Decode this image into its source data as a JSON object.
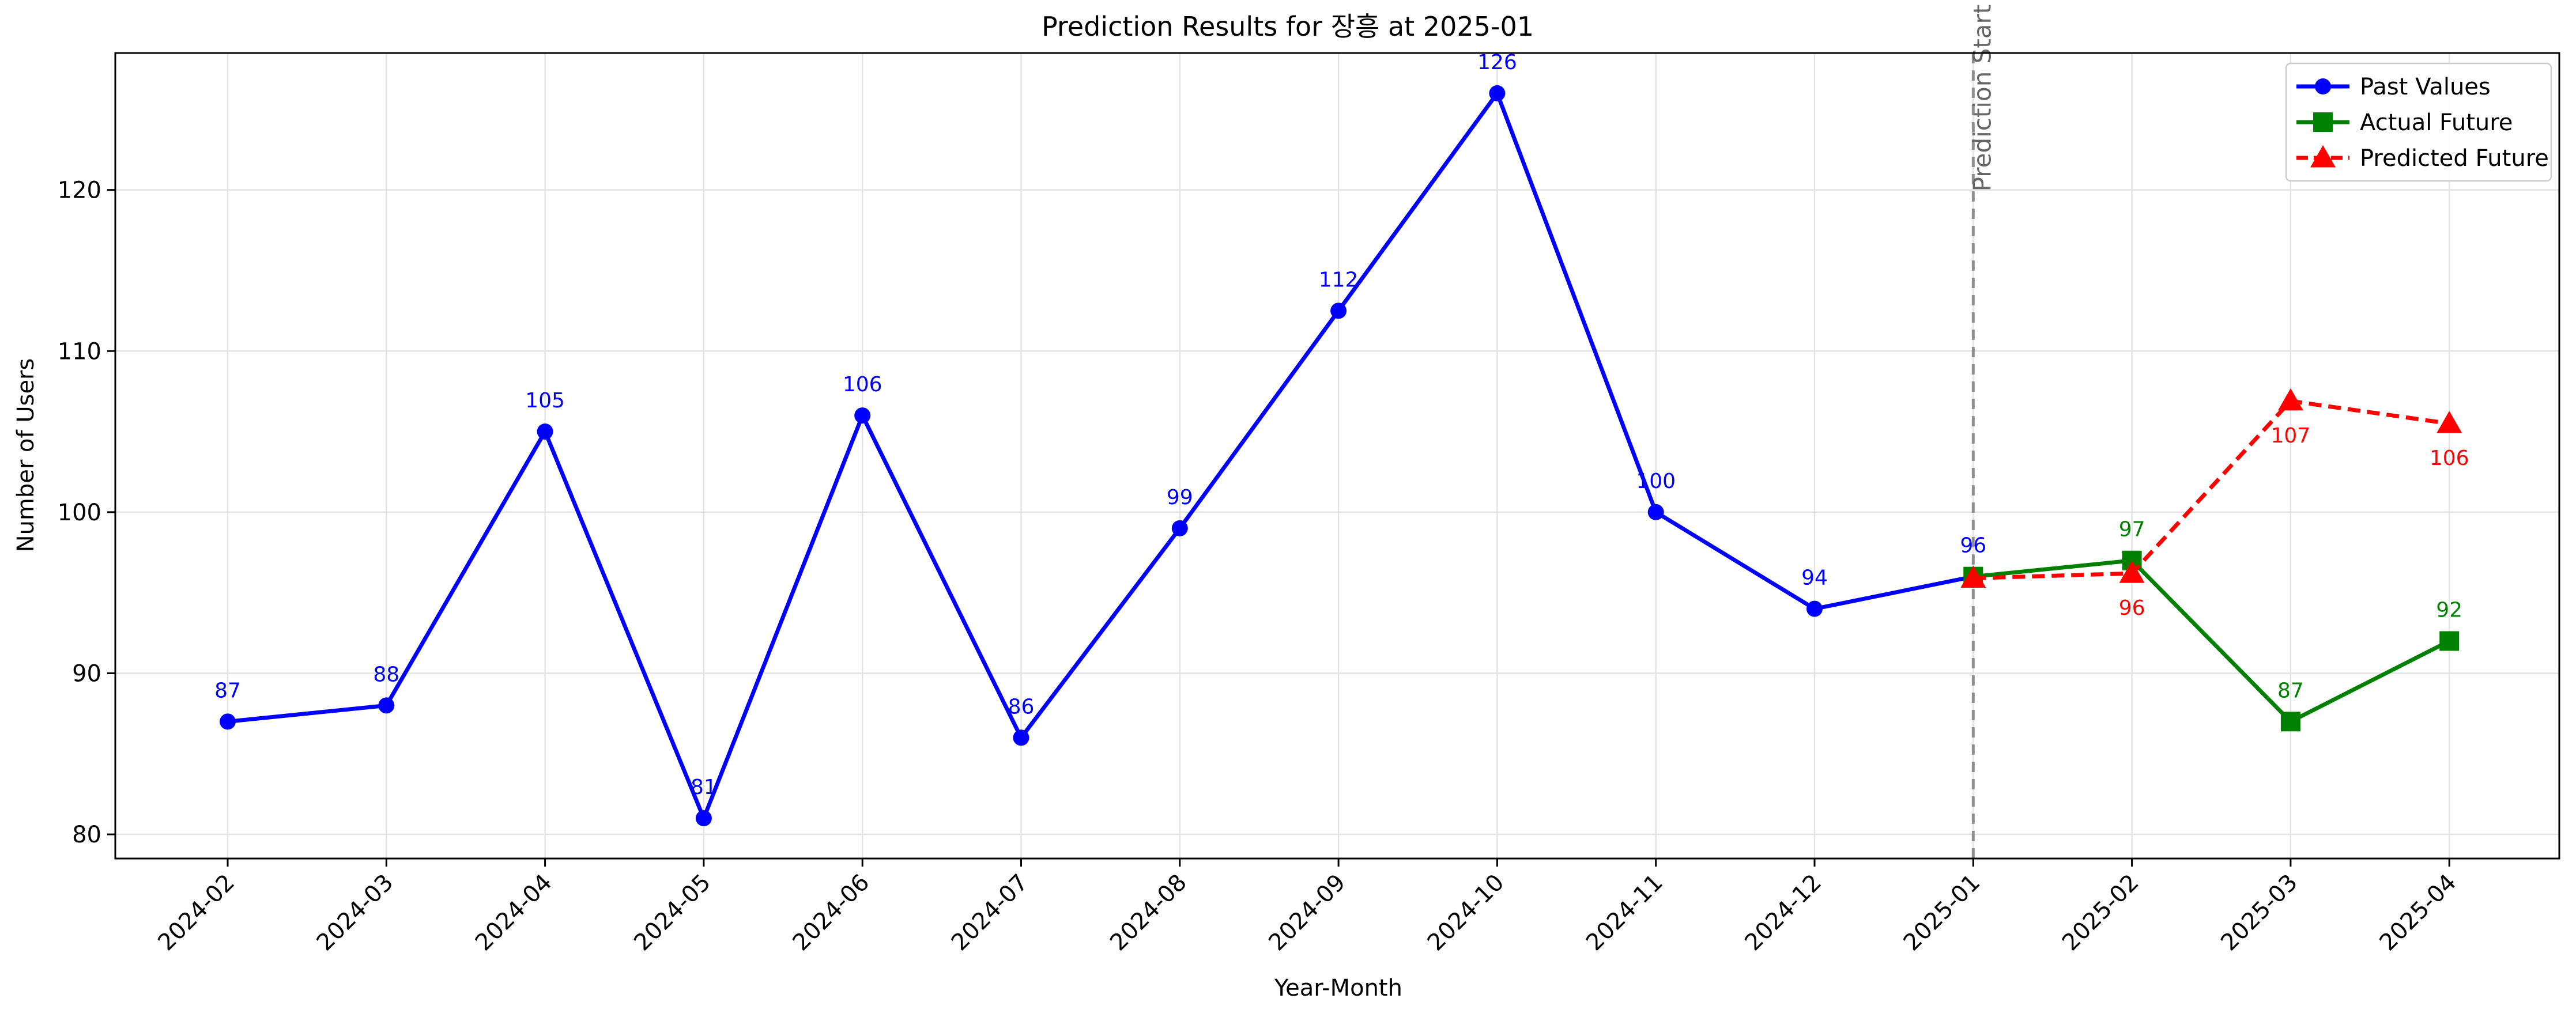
{
  "chart_data": {
    "type": "line",
    "title": "Prediction Results for 장흥 at 2025-01",
    "xlabel": "Year-Month",
    "ylabel": "Number of Users",
    "categories": [
      "2024-02",
      "2024-03",
      "2024-04",
      "2024-05",
      "2024-06",
      "2024-07",
      "2024-08",
      "2024-09",
      "2024-10",
      "2024-11",
      "2024-12",
      "2025-01",
      "2025-02",
      "2025-03",
      "2025-04"
    ],
    "ylim": [
      78.5,
      128.5
    ],
    "yticks": [
      80,
      90,
      100,
      110,
      120
    ],
    "grid": true,
    "legend_position": "top-right",
    "series": [
      {
        "name": "Past Values",
        "color": "#0000ff",
        "marker": "circle",
        "line_style": "solid",
        "x": [
          "2024-02",
          "2024-03",
          "2024-04",
          "2024-05",
          "2024-06",
          "2024-07",
          "2024-08",
          "2024-09",
          "2024-10",
          "2024-11",
          "2024-12",
          "2025-01"
        ],
        "values": [
          87,
          88,
          105,
          81,
          106,
          86,
          99,
          112.5,
          126,
          100,
          94,
          96
        ],
        "labels": [
          "87",
          "88",
          "105",
          "81",
          "106",
          "86",
          "99",
          "112",
          "126",
          "100",
          "94",
          "96"
        ],
        "label_position": "above"
      },
      {
        "name": "Actual Future",
        "color": "#008000",
        "marker": "square",
        "line_style": "solid",
        "x": [
          "2025-01",
          "2025-02",
          "2025-03",
          "2025-04"
        ],
        "values": [
          96,
          97,
          87,
          92
        ],
        "labels": [
          "",
          "97",
          "87",
          "92"
        ],
        "label_position": "above"
      },
      {
        "name": "Predicted Future",
        "color": "#ff0000",
        "marker": "triangle",
        "line_style": "dashed",
        "x": [
          "2025-01",
          "2025-02",
          "2025-03",
          "2025-04"
        ],
        "values": [
          95.9,
          96.2,
          106.9,
          105.5
        ],
        "labels": [
          "",
          "96",
          "107",
          "106"
        ],
        "label_position": "below"
      }
    ],
    "annotations": [
      {
        "type": "vline",
        "x": "2025-01",
        "label": "Prediction Start",
        "color": "#808080"
      }
    ]
  }
}
